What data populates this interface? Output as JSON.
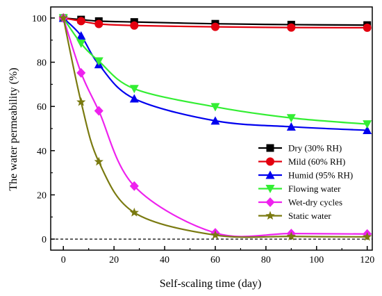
{
  "chart_data": {
    "type": "line",
    "xlabel": "Self-scaling time (day)",
    "ylabel": "The water permeability (%)",
    "xlim": [
      -5,
      122
    ],
    "ylim": [
      -5,
      105
    ],
    "xticks": [
      0,
      20,
      40,
      60,
      80,
      100,
      120
    ],
    "yticks": [
      0,
      20,
      40,
      60,
      80,
      100
    ],
    "legend_position": "right-middle",
    "reference_line": {
      "y": 0,
      "style": "dashed"
    },
    "series": [
      {
        "name": "Dry (30% RH)",
        "color": "#000000",
        "marker": "square",
        "x": [
          0,
          7,
          14,
          28,
          60,
          90,
          120
        ],
        "y": [
          100,
          99.3,
          98.6,
          98.2,
          97.4,
          97.0,
          96.8
        ]
      },
      {
        "name": "Mild (60% RH)",
        "color": "#e3000f",
        "marker": "circle",
        "x": [
          0,
          7,
          14,
          28,
          60,
          90,
          120
        ],
        "y": [
          100,
          98.6,
          97.3,
          96.6,
          96.0,
          95.7,
          95.6
        ]
      },
      {
        "name": "Humid (95% RH)",
        "color": "#0000ee",
        "marker": "triangle-up",
        "x": [
          0,
          7,
          14,
          28,
          60,
          90,
          120
        ],
        "y": [
          100,
          92,
          79,
          63.5,
          53.5,
          50.8,
          49.2
        ]
      },
      {
        "name": "Flowing water",
        "color": "#33ee33",
        "marker": "triangle-down",
        "x": [
          0,
          7,
          14,
          28,
          60,
          90,
          120
        ],
        "y": [
          100,
          88.5,
          80.5,
          68,
          59.8,
          54.8,
          52
        ]
      },
      {
        "name": "Wet-dry cycles",
        "color": "#ee22ee",
        "marker": "diamond",
        "x": [
          0,
          7,
          14,
          28,
          60,
          90,
          120
        ],
        "y": [
          100,
          75.2,
          58,
          24,
          2.8,
          2.5,
          2.3
        ]
      },
      {
        "name": "Static water",
        "color": "#7a7a10",
        "marker": "star",
        "x": [
          0,
          7,
          14,
          28,
          60,
          90,
          120
        ],
        "y": [
          100,
          62,
          35,
          12,
          1.8,
          1.2,
          1.0
        ]
      }
    ]
  }
}
